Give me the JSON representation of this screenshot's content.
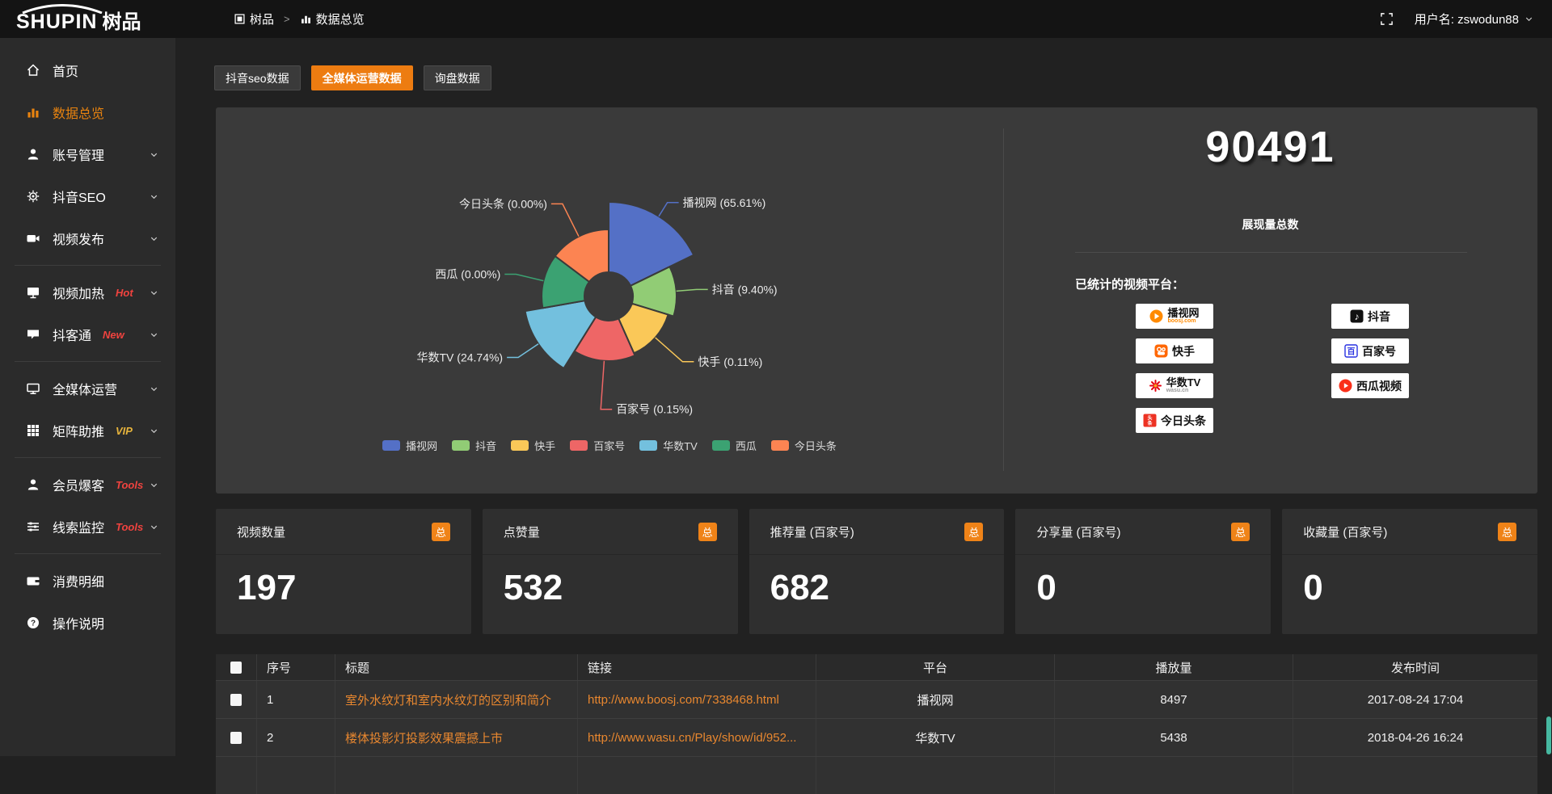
{
  "header": {
    "logo_en": "SHUPIN",
    "logo_cn": "树品",
    "breadcrumb": [
      {
        "label": "树品",
        "icon": "app"
      },
      {
        "label": "数据总览",
        "icon": "chart"
      }
    ],
    "username": "用户名: zswodun88"
  },
  "sidebar": {
    "items": [
      {
        "label": "首页",
        "icon": "home",
        "active": false,
        "expandable": false
      },
      {
        "label": "数据总览",
        "icon": "chart",
        "active": true,
        "expandable": false
      },
      {
        "label": "账号管理",
        "icon": "user",
        "expandable": true
      },
      {
        "label": "抖音SEO",
        "icon": "gear",
        "expandable": true
      },
      {
        "label": "视频发布",
        "icon": "video",
        "expandable": true,
        "divider_after": true
      },
      {
        "label": "视频加热",
        "icon": "heat",
        "tag": "Hot",
        "tag_color": "#f0433f",
        "expandable": true
      },
      {
        "label": "抖客通",
        "icon": "chat",
        "tag": "New",
        "tag_color": "#f0433f",
        "expandable": true,
        "divider_after": true
      },
      {
        "label": "全媒体运营",
        "icon": "monitor",
        "expandable": true
      },
      {
        "label": "矩阵助推",
        "icon": "grid",
        "tag": "VIP",
        "tag_color": "#e6b33c",
        "expandable": true,
        "divider_after": true
      },
      {
        "label": "会员爆客",
        "icon": "person",
        "tag": "Tools",
        "tag_color": "#f0433f",
        "expandable": true
      },
      {
        "label": "线索监控",
        "icon": "sliders",
        "tag": "Tools",
        "tag_color": "#f0433f",
        "expandable": true,
        "divider_after": true
      },
      {
        "label": "消费明细",
        "icon": "wallet",
        "expandable": false
      },
      {
        "label": "操作说明",
        "icon": "help",
        "expandable": false
      }
    ]
  },
  "tabs": [
    {
      "label": "抖音seo数据",
      "active": false
    },
    {
      "label": "全媒体运营数据",
      "active": true
    },
    {
      "label": "询盘数据",
      "active": false
    }
  ],
  "chart_data": {
    "type": "pie",
    "subtype": "nightingale-rose",
    "title": "",
    "legend_position": "bottom",
    "inner_radius": 30,
    "items": [
      {
        "name": "播视网",
        "pct": 65.61,
        "color": "#5470c6",
        "outer_r": 117,
        "angle_span": 64,
        "line_len": 20
      },
      {
        "name": "抖音",
        "pct": 9.4,
        "color": "#91cc75",
        "outer_r": 84,
        "angle_span": 43,
        "line_len": 25
      },
      {
        "name": "快手",
        "pct": 0.11,
        "color": "#fac858",
        "outer_r": 77,
        "angle_span": 49,
        "line_len": 45
      },
      {
        "name": "百家号",
        "pct": 0.15,
        "color": "#ee6666",
        "outer_r": 80,
        "angle_span": 56,
        "line_len": 60,
        "side": "right"
      },
      {
        "name": "华数TV",
        "pct": 24.74,
        "color": "#73c0de",
        "outer_r": 105,
        "angle_span": 48,
        "line_len": 30
      },
      {
        "name": "西瓜",
        "pct": 0.0,
        "color": "#3ba272",
        "outer_r": 83,
        "angle_span": 47,
        "line_len": 35
      },
      {
        "name": "今日头条",
        "pct": 0.0,
        "color": "#fc8452",
        "outer_r": 83,
        "angle_span": 53,
        "line_len": 45
      }
    ]
  },
  "summary": {
    "total_value": "90491",
    "total_label": "展现量总数",
    "platforms_title": "已统计的视频平台：",
    "badges_left": [
      {
        "name": "播视网",
        "sub": "boosj.com",
        "logo": "boosj"
      },
      {
        "name": "快手",
        "sub": "",
        "logo": "kuaishou"
      },
      {
        "name": "华数TV",
        "sub": "wasu.cn",
        "logo": "wasu"
      },
      {
        "name": "今日头条",
        "sub": "",
        "logo": "toutiao"
      }
    ],
    "badges_right": [
      {
        "name": "抖音",
        "sub": "",
        "logo": "douyin"
      },
      {
        "name": "百家号",
        "sub": "",
        "logo": "baijia"
      },
      {
        "name": "西瓜视频",
        "sub": "",
        "logo": "xigua"
      }
    ]
  },
  "stat_cards": [
    {
      "label": "视频数量",
      "badge": "总",
      "value": "197"
    },
    {
      "label": "点赞量",
      "badge": "总",
      "value": "532"
    },
    {
      "label": "推荐量 (百家号)",
      "badge": "总",
      "value": "682"
    },
    {
      "label": "分享量 (百家号)",
      "badge": "总",
      "value": "0"
    },
    {
      "label": "收藏量 (百家号)",
      "badge": "总",
      "value": "0"
    }
  ],
  "table": {
    "columns": [
      "序号",
      "标题",
      "链接",
      "平台",
      "播放量",
      "发布时间"
    ],
    "rows": [
      {
        "seq": "1",
        "title": "室外水纹灯和室内水纹灯的区别和简介",
        "link": "http://www.boosj.com/7338468.html",
        "platform": "播视网",
        "plays": "8497",
        "time": "2017-08-24 17:04"
      },
      {
        "seq": "2",
        "title": "楼体投影灯投影效果震撼上市",
        "link": "http://www.wasu.cn/Play/show/id/952...",
        "platform": "华数TV",
        "plays": "5438",
        "time": "2018-04-26 16:24"
      }
    ]
  },
  "colors": {
    "accent_orange": "#ed7c11",
    "badge_orange": "#ef8318",
    "sidebar_active": "#e8830f",
    "link_orange": "#e8872f",
    "panel_bg": "#3a3a3a"
  }
}
